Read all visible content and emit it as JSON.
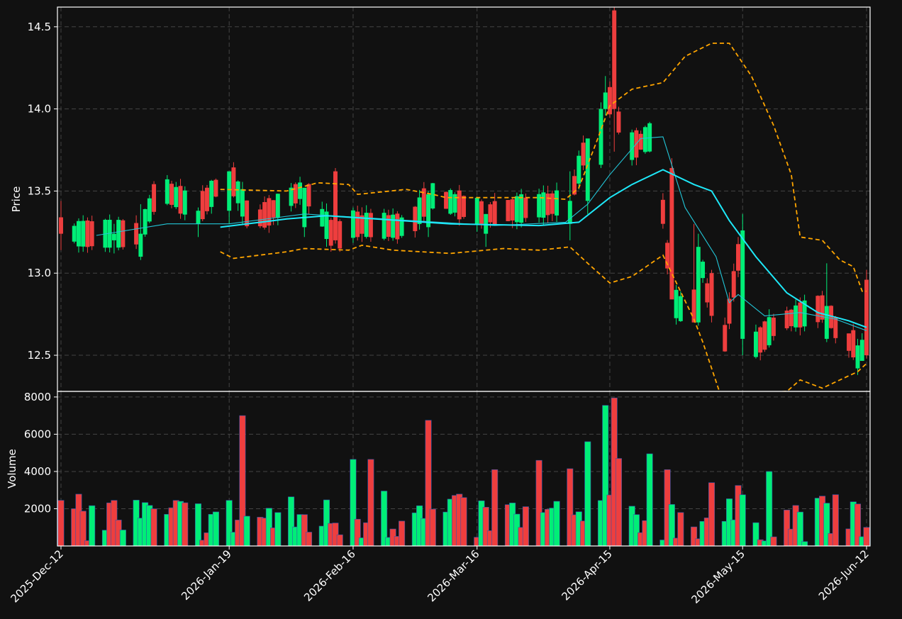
{
  "chart_data": [
    {
      "type": "candlestick",
      "ylabel": "Price",
      "ylim": [
        12.28,
        14.62
      ],
      "yticks": [
        12.5,
        13.0,
        13.5,
        14.0,
        14.5
      ],
      "ytick_labels": [
        "12.5",
        "13.0",
        "13.5",
        "14.0",
        "14.5"
      ],
      "xticks": [
        "2025-12-12",
        "2026-01-19",
        "2026-02-16",
        "2026-03-16",
        "2026-04-15",
        "2026-05-15",
        "2026-06-12"
      ],
      "xtick_labels": [
        "2025-Dec-12",
        "2026-Jan-19",
        "2026-Feb-16",
        "2026-Mar-16",
        "2026-Apr-15",
        "2026-May-15",
        "2026-Jun-12"
      ],
      "grid": true,
      "colors": {
        "up": "#00ee77",
        "down": "#ee3e3e",
        "ma_fast": "#22c6d8",
        "ma_slow": "#1ee8f8",
        "bands": "#ffa500",
        "background": "#111111",
        "frame": "#ffffff"
      },
      "x_start": "2025-12-12",
      "x_end": "2026-06-12",
      "ohlc_keypoints": [
        [
          "2025-12-12",
          13.34,
          13.44,
          13.14,
          13.24
        ],
        [
          "2025-12-24",
          13.2,
          13.3,
          13.12,
          13.24
        ],
        [
          "2025-12-30",
          13.1,
          13.42,
          13.08,
          13.24
        ],
        [
          "2026-01-03",
          13.34,
          13.52,
          13.28,
          13.53
        ],
        [
          "2026-01-12",
          13.3,
          13.4,
          13.22,
          13.38
        ],
        [
          "2026-01-19",
          13.38,
          13.62,
          13.3,
          13.62
        ],
        [
          "2026-01-24",
          13.34,
          13.72,
          13.26,
          13.3
        ],
        [
          "2026-02-05",
          13.28,
          13.48,
          13.22,
          13.52
        ],
        [
          "2026-02-12",
          13.62,
          13.64,
          13.18,
          13.2
        ],
        [
          "2026-02-15",
          13.14,
          13.3,
          12.95,
          13.3
        ],
        [
          "2026-03-01",
          13.36,
          13.54,
          13.24,
          13.28
        ],
        [
          "2026-03-05",
          13.28,
          13.5,
          13.22,
          13.48
        ],
        [
          "2026-03-18",
          13.24,
          13.36,
          13.16,
          13.36
        ],
        [
          "2026-04-06",
          13.3,
          13.62,
          13.2,
          13.44
        ],
        [
          "2026-04-10",
          13.44,
          13.72,
          13.36,
          13.82
        ],
        [
          "2026-04-13",
          13.66,
          14.04,
          13.64,
          14.0
        ],
        [
          "2026-04-14",
          14.0,
          14.2,
          13.96,
          14.1
        ],
        [
          "2026-04-16",
          14.6,
          14.62,
          13.74,
          14.0
        ],
        [
          "2026-04-19",
          13.9,
          13.94,
          13.7,
          13.76
        ],
        [
          "2026-04-25",
          13.66,
          13.86,
          13.2,
          13.84
        ],
        [
          "2026-04-26",
          13.9,
          13.9,
          13.5,
          13.64
        ],
        [
          "2026-04-29",
          13.64,
          13.7,
          12.88,
          12.84
        ],
        [
          "2026-05-04",
          12.9,
          13.3,
          12.7,
          12.7
        ],
        [
          "2026-05-05",
          12.7,
          13.24,
          12.68,
          13.16
        ],
        [
          "2026-05-08",
          13.0,
          13.02,
          12.7,
          12.74
        ],
        [
          "2026-05-10",
          13.0,
          13.02,
          12.4,
          12.44
        ],
        [
          "2026-05-15",
          12.6,
          13.36,
          12.5,
          13.26
        ],
        [
          "2026-05-17",
          13.3,
          13.3,
          12.38,
          12.54
        ],
        [
          "2026-05-23",
          12.8,
          12.84,
          12.5,
          12.7
        ],
        [
          "2026-06-03",
          12.6,
          13.06,
          12.58,
          12.8
        ],
        [
          "2026-06-06",
          12.78,
          12.82,
          12.5,
          12.6
        ],
        [
          "2026-06-10",
          12.42,
          12.6,
          12.38,
          12.56
        ],
        [
          "2026-06-12",
          12.96,
          13.02,
          12.48,
          12.5
        ]
      ],
      "ma_fast_keypoints": [
        [
          "2025-12-20",
          13.23
        ],
        [
          "2026-01-05",
          13.3
        ],
        [
          "2026-01-19",
          13.3
        ],
        [
          "2026-02-05",
          13.36
        ],
        [
          "2026-03-01",
          13.32
        ],
        [
          "2026-03-20",
          13.29
        ],
        [
          "2026-04-05",
          13.31
        ],
        [
          "2026-04-10",
          13.42
        ],
        [
          "2026-04-15",
          13.6
        ],
        [
          "2026-04-22",
          13.82
        ],
        [
          "2026-04-27",
          13.83
        ],
        [
          "2026-05-02",
          13.4
        ],
        [
          "2026-05-09",
          13.1
        ],
        [
          "2026-05-12",
          12.82
        ],
        [
          "2026-05-14",
          12.87
        ],
        [
          "2026-05-20",
          12.74
        ],
        [
          "2026-05-28",
          12.76
        ],
        [
          "2026-06-05",
          12.72
        ],
        [
          "2026-06-12",
          12.65
        ]
      ],
      "ma_slow_keypoints": [
        [
          "2026-01-17",
          13.28
        ],
        [
          "2026-02-01",
          13.33
        ],
        [
          "2026-02-10",
          13.35
        ],
        [
          "2026-03-10",
          13.3
        ],
        [
          "2026-03-30",
          13.29
        ],
        [
          "2026-04-08",
          13.31
        ],
        [
          "2026-04-15",
          13.46
        ],
        [
          "2026-04-20",
          13.54
        ],
        [
          "2026-04-27",
          13.63
        ],
        [
          "2026-05-04",
          13.54
        ],
        [
          "2026-05-08",
          13.5
        ],
        [
          "2026-05-12",
          13.32
        ],
        [
          "2026-05-18",
          13.1
        ],
        [
          "2026-05-25",
          12.88
        ],
        [
          "2026-06-01",
          12.76
        ],
        [
          "2026-06-08",
          12.71
        ],
        [
          "2026-06-12",
          12.67
        ]
      ],
      "upper_band_keypoints": [
        [
          "2026-01-17",
          13.51
        ],
        [
          "2026-02-01",
          13.5
        ],
        [
          "2026-02-08",
          13.55
        ],
        [
          "2026-02-15",
          13.54
        ],
        [
          "2026-02-17",
          13.48
        ],
        [
          "2026-02-28",
          13.51
        ],
        [
          "2026-03-06",
          13.48
        ],
        [
          "2026-03-09",
          13.46
        ],
        [
          "2026-03-30",
          13.46
        ],
        [
          "2026-04-05",
          13.45
        ],
        [
          "2026-04-08",
          13.52
        ],
        [
          "2026-04-12",
          13.8
        ],
        [
          "2026-04-15",
          14.02
        ],
        [
          "2026-04-20",
          14.12
        ],
        [
          "2026-04-27",
          14.16
        ],
        [
          "2026-05-02",
          14.32
        ],
        [
          "2026-05-05",
          14.36
        ],
        [
          "2026-05-08",
          14.4
        ],
        [
          "2026-05-12",
          14.4
        ],
        [
          "2026-05-17",
          14.2
        ],
        [
          "2026-05-22",
          13.9
        ],
        [
          "2026-05-26",
          13.6
        ],
        [
          "2026-05-28",
          13.22
        ],
        [
          "2026-06-02",
          13.2
        ],
        [
          "2026-06-06",
          13.08
        ],
        [
          "2026-06-09",
          13.04
        ],
        [
          "2026-06-11",
          12.89
        ],
        [
          "2026-06-12",
          12.89
        ]
      ],
      "lower_band_keypoints": [
        [
          "2026-01-17",
          13.13
        ],
        [
          "2026-01-20",
          13.09
        ],
        [
          "2026-02-01",
          13.13
        ],
        [
          "2026-02-05",
          13.15
        ],
        [
          "2026-02-15",
          13.14
        ],
        [
          "2026-02-18",
          13.17
        ],
        [
          "2026-02-25",
          13.14
        ],
        [
          "2026-03-10",
          13.12
        ],
        [
          "2026-03-22",
          13.15
        ],
        [
          "2026-03-30",
          13.14
        ],
        [
          "2026-04-06",
          13.16
        ],
        [
          "2026-04-10",
          13.06
        ],
        [
          "2026-04-15",
          12.94
        ],
        [
          "2026-04-20",
          12.98
        ],
        [
          "2026-04-27",
          13.11
        ],
        [
          "2026-05-04",
          12.72
        ],
        [
          "2026-05-06",
          12.58
        ],
        [
          "2026-05-10",
          12.26
        ],
        [
          "2026-05-25",
          12.28
        ],
        [
          "2026-05-28",
          12.35
        ],
        [
          "2026-06-02",
          12.3
        ],
        [
          "2026-06-06",
          12.35
        ],
        [
          "2026-06-10",
          12.4
        ],
        [
          "2026-06-12",
          12.45
        ]
      ]
    },
    {
      "type": "bar",
      "ylabel": "Volume",
      "ylim": [
        0,
        8300
      ],
      "yticks": [
        2000,
        4000,
        6000,
        8000
      ],
      "ytick_labels": [
        "2000",
        "4000",
        "6000",
        "8000"
      ],
      "grid": true,
      "colors": {
        "up": "#00ee77",
        "down": "#ee3e3e",
        "edge": "#3355aa"
      },
      "volume_keypoints": [
        [
          "2025-12-12",
          2450,
          "down"
        ],
        [
          "2025-12-13",
          4300,
          "down"
        ],
        [
          "2025-12-15",
          2000,
          "down"
        ],
        [
          "2025-12-20",
          1700,
          "up"
        ],
        [
          "2025-12-24",
          2450,
          "down"
        ],
        [
          "2026-01-05",
          1700,
          "up"
        ],
        [
          "2026-01-17",
          3350,
          "down"
        ],
        [
          "2026-01-22",
          7000,
          "down"
        ],
        [
          "2026-01-24",
          3450,
          "down"
        ],
        [
          "2026-01-25",
          3100,
          "up"
        ],
        [
          "2026-02-01",
          2400,
          "down"
        ],
        [
          "2026-02-15",
          5250,
          "up"
        ],
        [
          "2026-02-16",
          4650,
          "up"
        ],
        [
          "2026-02-20",
          4650,
          "down"
        ],
        [
          "2026-02-23",
          2950,
          "up"
        ],
        [
          "2026-03-05",
          6750,
          "down"
        ],
        [
          "2026-03-13",
          2600,
          "down"
        ],
        [
          "2026-03-20",
          4100,
          "down"
        ],
        [
          "2026-03-30",
          4600,
          "down"
        ],
        [
          "2026-04-04",
          5450,
          "down"
        ],
        [
          "2026-04-06",
          4150,
          "down"
        ],
        [
          "2026-04-10",
          5600,
          "up"
        ],
        [
          "2026-04-14",
          7550,
          "up"
        ],
        [
          "2026-04-16",
          7950,
          "down"
        ],
        [
          "2026-04-17",
          4700,
          "down"
        ],
        [
          "2026-04-24",
          4950,
          "up"
        ],
        [
          "2026-04-28",
          4100,
          "down"
        ],
        [
          "2026-05-02",
          5000,
          "up"
        ],
        [
          "2026-05-08",
          3400,
          "down"
        ],
        [
          "2026-05-14",
          3250,
          "down"
        ],
        [
          "2026-05-17",
          3300,
          "down"
        ],
        [
          "2026-05-21",
          4000,
          "up"
        ],
        [
          "2026-06-03",
          2300,
          "up"
        ],
        [
          "2026-06-12",
          1000,
          "down"
        ]
      ]
    }
  ]
}
